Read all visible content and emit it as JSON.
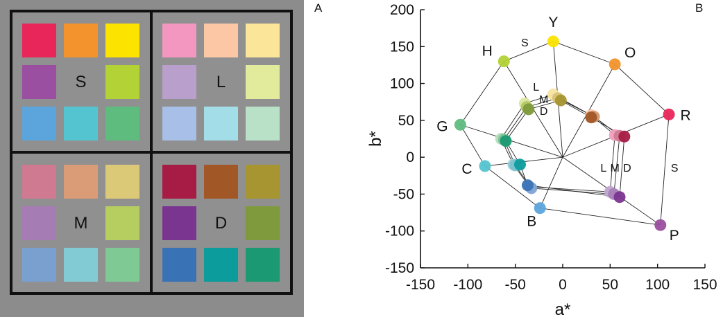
{
  "panel_labels": {
    "a": "A",
    "b": "B"
  },
  "panel_a": {
    "quadrants": [
      {
        "label": "S",
        "swatches": [
          "#e8265a",
          "#f3932d",
          "#fce300",
          "#9b4fa0",
          "",
          "#b2d235",
          "#5ca5dc",
          "#54c5d0",
          "#5ebc7e"
        ]
      },
      {
        "label": "L",
        "swatches": [
          "#f497c0",
          "#fbc7a5",
          "#fbe598",
          "#b9a0cc",
          "",
          "#e1eb9b",
          "#a8c0e8",
          "#a3dde8",
          "#b8e1c8"
        ]
      },
      {
        "label": "M",
        "swatches": [
          "#d07a92",
          "#d99c77",
          "#dcc978",
          "#a57cb4",
          "",
          "#b6cd60",
          "#7aa0d0",
          "#83cbd4",
          "#7ec994"
        ]
      },
      {
        "label": "D",
        "swatches": [
          "#a71c45",
          "#a25727",
          "#a69530",
          "#7a3590",
          "",
          "#7e9a3c",
          "#3a73b5",
          "#0d9c9c",
          "#1b9972"
        ]
      }
    ]
  },
  "chart_data": {
    "type": "scatter",
    "xlabel": "a*",
    "ylabel": "b*",
    "xlim": [
      -150,
      150
    ],
    "ylim": [
      -150,
      200
    ],
    "xticks": [
      -150,
      -100,
      -50,
      0,
      50,
      100,
      150
    ],
    "yticks": [
      200,
      150,
      100,
      50,
      0,
      -50,
      -100,
      -150
    ],
    "series": [
      {
        "name": "S",
        "points": [
          {
            "label": "Y",
            "x": -10,
            "y": 157,
            "color": "#fce300"
          },
          {
            "label": "O",
            "x": 55,
            "y": 126,
            "color": "#f3932d"
          },
          {
            "label": "R",
            "x": 112,
            "y": 58,
            "color": "#e8265a"
          },
          {
            "label": "P",
            "x": 103,
            "y": -92,
            "color": "#9b4fa0"
          },
          {
            "label": "B",
            "x": -24,
            "y": -69,
            "color": "#5ca5dc"
          },
          {
            "label": "C",
            "x": -82,
            "y": -12,
            "color": "#54c5d0"
          },
          {
            "label": "G",
            "x": -108,
            "y": 44,
            "color": "#5ebc7e"
          },
          {
            "label": "H",
            "x": -62,
            "y": 130,
            "color": "#b2d235"
          }
        ]
      },
      {
        "name": "L",
        "points": [
          {
            "x": -10,
            "y": 85,
            "color": "#f5e4a0"
          },
          {
            "x": 30,
            "y": 57,
            "color": "#f8c7a9"
          },
          {
            "x": 55,
            "y": 30,
            "color": "#f2a0bf"
          },
          {
            "x": 50,
            "y": -47,
            "color": "#c2a6d0"
          },
          {
            "x": -35,
            "y": -40,
            "color": "#a9c2e6"
          },
          {
            "x": -52,
            "y": -10,
            "color": "#9ccdd6"
          },
          {
            "x": -65,
            "y": 25,
            "color": "#b6dcc0"
          },
          {
            "x": -40,
            "y": 73,
            "color": "#dde6a0"
          }
        ]
      },
      {
        "name": "M",
        "points": [
          {
            "x": -5,
            "y": 80,
            "color": "#d8c27a"
          },
          {
            "x": 33,
            "y": 55,
            "color": "#d49a72"
          },
          {
            "x": 60,
            "y": 29,
            "color": "#cf7a93"
          },
          {
            "x": 54,
            "y": -50,
            "color": "#a880b6"
          },
          {
            "x": -33,
            "y": -42,
            "color": "#7fa3d3"
          },
          {
            "x": -50,
            "y": -11,
            "color": "#7ac2cd"
          },
          {
            "x": -62,
            "y": 24,
            "color": "#7cc38f"
          },
          {
            "x": -38,
            "y": 68,
            "color": "#b1c862"
          }
        ]
      },
      {
        "name": "D",
        "points": [
          {
            "x": -2,
            "y": 77,
            "color": "#a69530"
          },
          {
            "x": 30,
            "y": 54,
            "color": "#a25727"
          },
          {
            "x": 65,
            "y": 28,
            "color": "#a71c45"
          },
          {
            "x": 60,
            "y": -54,
            "color": "#7a3590"
          },
          {
            "x": -37,
            "y": -38,
            "color": "#3a73b5"
          },
          {
            "x": -45,
            "y": -10,
            "color": "#0d9c9c"
          },
          {
            "x": -60,
            "y": 22,
            "color": "#1b9972"
          },
          {
            "x": -36,
            "y": 65,
            "color": "#7e9a3c"
          }
        ]
      }
    ],
    "annotations": [
      {
        "text": "S",
        "x": -40,
        "y": 155
      },
      {
        "text": "L",
        "x": -28,
        "y": 95
      },
      {
        "text": "M",
        "x": -20,
        "y": 78
      },
      {
        "text": "D",
        "x": -20,
        "y": 62
      },
      {
        "text": "L",
        "x": 43,
        "y": -15
      },
      {
        "text": "M",
        "x": 55,
        "y": -15
      },
      {
        "text": "D",
        "x": 68,
        "y": -15
      },
      {
        "text": "S",
        "x": 118,
        "y": -15
      }
    ]
  }
}
